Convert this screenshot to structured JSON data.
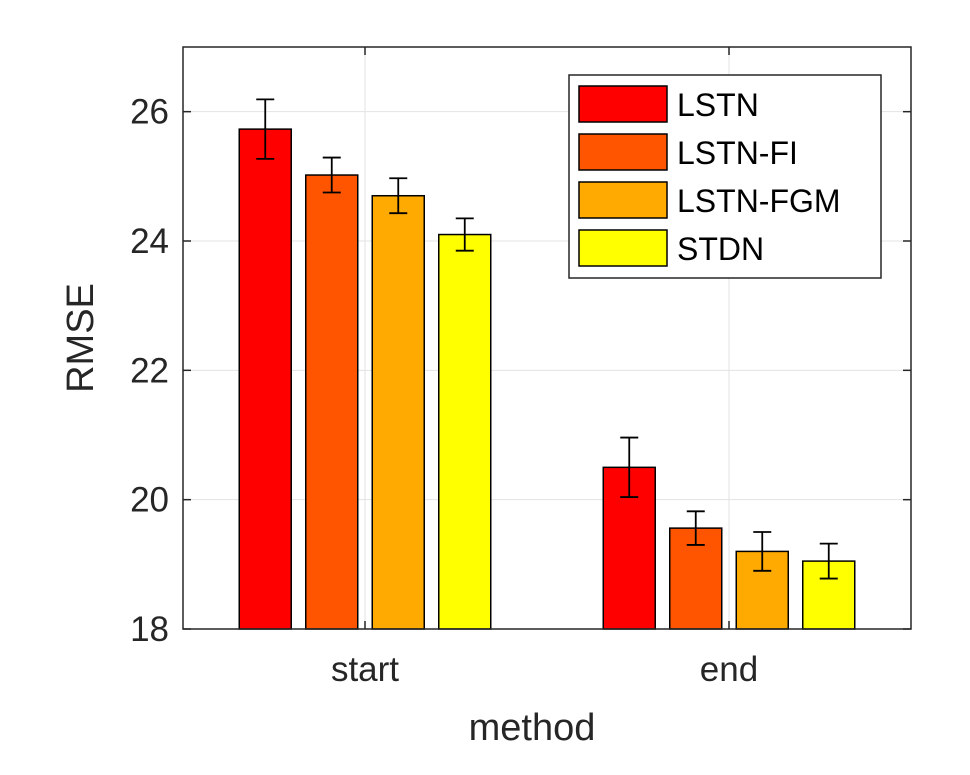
{
  "chart_data": {
    "type": "bar",
    "title": "",
    "xlabel": "method",
    "ylabel": "RMSE",
    "categories": [
      "start",
      "end"
    ],
    "ylim": [
      18,
      27
    ],
    "yticks": [
      18,
      20,
      22,
      24,
      26
    ],
    "grid": true,
    "legend_position": "top-right",
    "series": [
      {
        "name": "LSTN",
        "color": "#ff0000",
        "values": [
          25.73,
          20.5
        ],
        "errors": [
          0.46,
          0.46
        ]
      },
      {
        "name": "LSTN-FI",
        "color": "#ff5500",
        "values": [
          25.02,
          19.56
        ],
        "errors": [
          0.27,
          0.26
        ]
      },
      {
        "name": "LSTN-FGM",
        "color": "#ffaa00",
        "values": [
          24.7,
          19.2
        ],
        "errors": [
          0.27,
          0.3
        ]
      },
      {
        "name": "STDN",
        "color": "#ffff00",
        "values": [
          24.1,
          19.05
        ],
        "errors": [
          0.25,
          0.27
        ]
      }
    ]
  }
}
